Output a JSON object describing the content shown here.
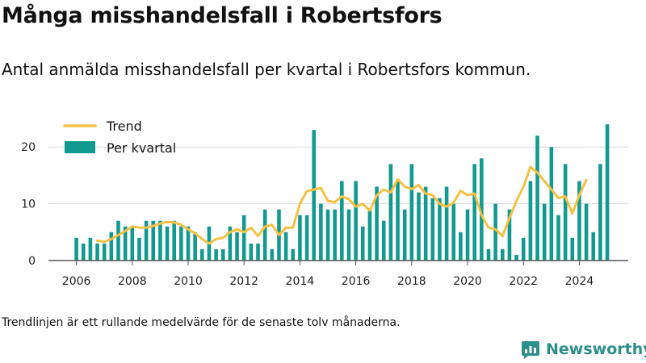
{
  "title": "Många misshandelsfall i Robertsfors",
  "subtitle": "Antal anmälda misshandelsfall per kvartal i Robertsfors kommun.",
  "footnote": "Trendlinjen är ett rullande medelvärde för de senaste tolv månaderna.",
  "brand": {
    "name": "Newsworthy",
    "color": "#2b8f8a"
  },
  "colors": {
    "bars": "#139a90",
    "trend": "#f6c142",
    "grid": "#d9d9d9",
    "axis": "#555555"
  },
  "chart_data": {
    "type": "bar",
    "x_start": 2006.0,
    "x_step": 0.25,
    "xlim": [
      2005.0,
      2025.75
    ],
    "ylim": [
      0,
      26
    ],
    "x_ticks": [
      "2006",
      "2008",
      "2010",
      "2012",
      "2014",
      "2016",
      "2018",
      "2020",
      "2022",
      "2024"
    ],
    "y_ticks": [
      "0",
      "10",
      "20"
    ],
    "grid": "horizontal",
    "legend_position": "top-left",
    "series": [
      {
        "name": "Per kvartal",
        "kind": "bar",
        "values": [
          4,
          3,
          4,
          3,
          3,
          5,
          7,
          6,
          6,
          4,
          7,
          7,
          7,
          6,
          7,
          6,
          6,
          5,
          2,
          6,
          2,
          2,
          6,
          5,
          8,
          3,
          3,
          9,
          2,
          9,
          5,
          2,
          8,
          8,
          23,
          10,
          9,
          9,
          14,
          9,
          14,
          6,
          9,
          13,
          7,
          17,
          14,
          9,
          17,
          12,
          13,
          11,
          11,
          13,
          10,
          5,
          9,
          17,
          18,
          2,
          10,
          2,
          9,
          1,
          4,
          14,
          22,
          10,
          20,
          8,
          17,
          4,
          14,
          10,
          5,
          17,
          24
        ]
      },
      {
        "name": "Trend",
        "kind": "line",
        "x_start": 2006.75,
        "values": [
          3.5,
          3.3,
          3.8,
          4.5,
          5.2,
          6.0,
          5.8,
          5.8,
          6.1,
          6.5,
          6.8,
          6.7,
          6.3,
          5.5,
          4.8,
          3.8,
          3.0,
          3.8,
          4.0,
          5.0,
          5.5,
          5.0,
          5.8,
          4.3,
          6.0,
          6.3,
          4.5,
          5.8,
          5.8,
          10.0,
          12.2,
          12.5,
          12.8,
          10.5,
          10.3,
          11.3,
          10.8,
          9.5,
          10.0,
          8.8,
          11.5,
          12.5,
          12.0,
          14.3,
          13.0,
          12.6,
          13.3,
          11.8,
          11.5,
          10.0,
          9.5,
          10.2,
          12.3,
          11.5,
          11.8,
          8.0,
          5.8,
          5.5,
          4.3,
          7.5,
          10.5,
          13.0,
          16.5,
          15.5,
          14.0,
          12.5,
          11.0,
          11.3,
          8.3,
          11.5,
          14.2
        ]
      }
    ]
  }
}
